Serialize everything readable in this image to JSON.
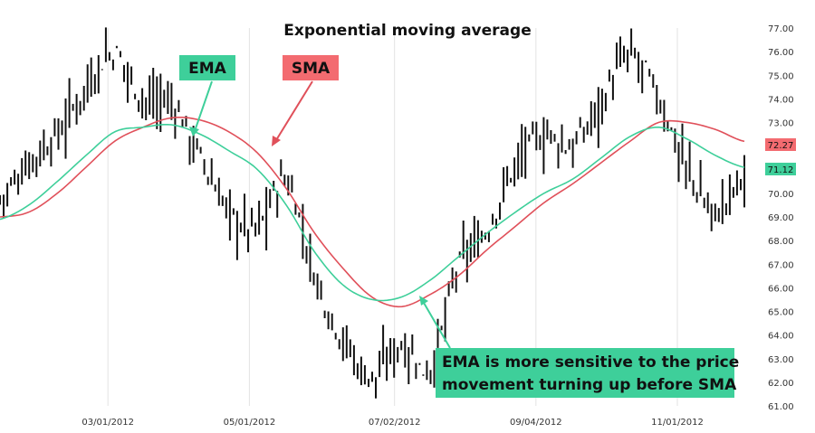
{
  "chart_data": {
    "type": "line",
    "title": "Exponential moving average",
    "xlabel": "",
    "ylabel": "",
    "ylim": [
      61.0,
      77.0
    ],
    "y_ticks": [
      "77.00",
      "76.00",
      "75.00",
      "74.00",
      "73.00",
      "72.00",
      "71.00",
      "70.00",
      "69.00",
      "68.00",
      "67.00",
      "66.00",
      "65.00",
      "64.00",
      "63.00",
      "62.00",
      "61.00"
    ],
    "x_ticks": [
      "03/01/2012",
      "05/01/2012",
      "07/02/2012",
      "09/04/2012",
      "11/01/2012"
    ],
    "grid": "vertical",
    "legend": "annotation labels",
    "colors": {
      "ema": "#3ecf9a",
      "sma": "#e0505a",
      "price": "#111111",
      "ema_tag_bg": "#3ecf9a",
      "sma_tag_bg": "#f36b70",
      "gridline": "#e3e3e3"
    },
    "series": [
      {
        "name": "EMA",
        "color": "#3ecf9a",
        "values": [
          68.9,
          69.5,
          70.5,
          71.6,
          72.6,
          72.8,
          72.9,
          72.5,
          71.8,
          71.0,
          69.5,
          67.5,
          66.1,
          65.5,
          65.6,
          66.3,
          67.3,
          68.3,
          69.2,
          70.0,
          70.6,
          71.5,
          72.4,
          72.8,
          72.3,
          71.6,
          71.1
        ]
      },
      {
        "name": "SMA",
        "color": "#e0505a",
        "values": [
          69.0,
          69.2,
          70.0,
          71.1,
          72.2,
          72.8,
          73.2,
          73.1,
          72.6,
          71.7,
          70.2,
          68.3,
          66.8,
          65.6,
          65.2,
          65.7,
          66.5,
          67.6,
          68.6,
          69.6,
          70.4,
          71.3,
          72.2,
          73.0,
          73.0,
          72.7,
          72.2
        ]
      },
      {
        "name": "Price",
        "color": "#111111",
        "values": [
          69.8,
          71.3,
          72.5,
          74.5,
          75.9,
          74.0,
          73.8,
          71.5,
          69.2,
          68.6,
          70.5,
          66.5,
          63.8,
          62.2,
          63.6,
          62.6,
          66.8,
          68.4,
          71.2,
          72.4,
          72.0,
          73.9,
          75.8,
          74.0,
          71.0,
          69.2,
          70.8
        ]
      }
    ],
    "last_values": {
      "sma": "72.27",
      "ema": "71.12"
    },
    "annotations": {
      "ema_tag": "EMA",
      "sma_tag": "SMA",
      "note_line1": "EMA is more sensitive to the price",
      "note_line2": "movement turning up before SMA"
    }
  }
}
